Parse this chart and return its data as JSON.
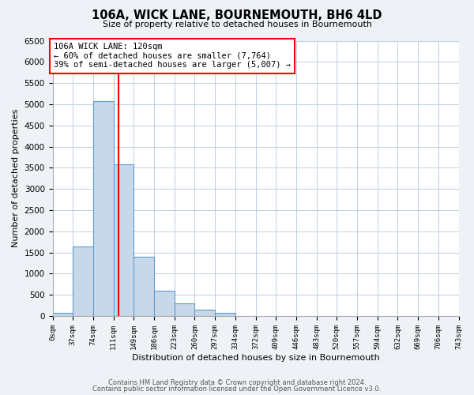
{
  "title": "106A, WICK LANE, BOURNEMOUTH, BH6 4LD",
  "subtitle": "Size of property relative to detached houses in Bournemouth",
  "xlabel": "Distribution of detached houses by size in Bournemouth",
  "ylabel": "Number of detached properties",
  "bin_edges": [
    0,
    37,
    74,
    111,
    148,
    185,
    222,
    259,
    296,
    333,
    370,
    407,
    444,
    481,
    518,
    555,
    592,
    629,
    666,
    703,
    740
  ],
  "bin_labels": [
    "0sqm",
    "37sqm",
    "74sqm",
    "111sqm",
    "149sqm",
    "186sqm",
    "223sqm",
    "260sqm",
    "297sqm",
    "334sqm",
    "372sqm",
    "409sqm",
    "446sqm",
    "483sqm",
    "520sqm",
    "557sqm",
    "594sqm",
    "632sqm",
    "669sqm",
    "706sqm",
    "743sqm"
  ],
  "counts": [
    75,
    1650,
    5075,
    3580,
    1400,
    600,
    290,
    140,
    75,
    0,
    0,
    0,
    0,
    0,
    0,
    0,
    0,
    0,
    0,
    0
  ],
  "bar_color": "#c8d8e8",
  "bar_edge_color": "#5b9bd5",
  "vline_x": 120,
  "vline_color": "red",
  "annotation_title": "106A WICK LANE: 120sqm",
  "annotation_line1": "← 60% of detached houses are smaller (7,764)",
  "annotation_line2": "39% of semi-detached houses are larger (5,007) →",
  "annotation_box_color": "white",
  "annotation_box_edge_color": "red",
  "ylim": [
    0,
    6500
  ],
  "yticks": [
    0,
    500,
    1000,
    1500,
    2000,
    2500,
    3000,
    3500,
    4000,
    4500,
    5000,
    5500,
    6000,
    6500
  ],
  "footer1": "Contains HM Land Registry data © Crown copyright and database right 2024.",
  "footer2": "Contains public sector information licensed under the Open Government Licence v3.0.",
  "background_color": "#eef2f7",
  "plot_bg_color": "white",
  "grid_color": "#c0cfe0"
}
